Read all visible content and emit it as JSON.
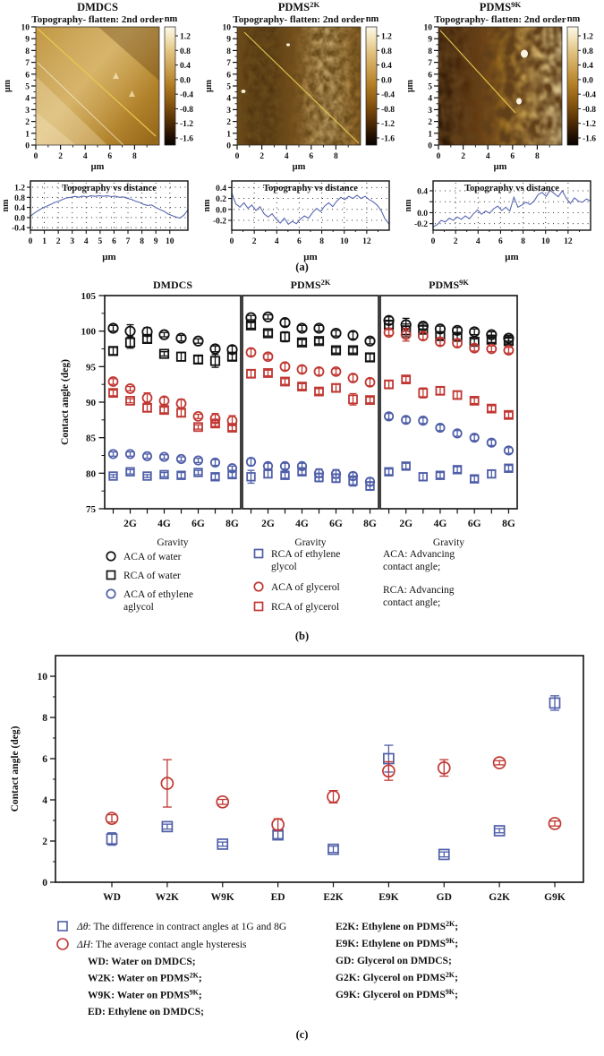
{
  "figure_labels": {
    "a": "(a)",
    "b": "(b)",
    "c": "(c)"
  },
  "colors": {
    "black": "#111111",
    "red": "#c13732",
    "blue": "#4f5fa8",
    "legend_blue_text": "#3a4f9b",
    "profile_line": "#5a68b2",
    "afm_scanline": "#e7c94f"
  },
  "afm": {
    "subtitle": "Topography- flatten: 2nd order",
    "colorbar_title": "nm",
    "colorbar_ticks": [
      "1.2",
      "0.8",
      "0.4",
      "0.0",
      "-0.4",
      "-0.8",
      "-1.2",
      "-1.6"
    ],
    "y_ticks": [
      "10",
      "9",
      "8",
      "7",
      "6",
      "5",
      "4",
      "3",
      "2",
      "1",
      "0"
    ],
    "x_ticks": [
      "0",
      "2",
      "4",
      "6",
      "8"
    ],
    "axis_unit": "μm",
    "panels": [
      {
        "title": "DMDCS"
      },
      {
        "title": "PDMS^2K^"
      },
      {
        "title": "PDMS^9K^"
      }
    ]
  },
  "chart_data": [
    {
      "id": "profile_dmdcs",
      "type": "line",
      "title": "Topography vs distance",
      "xlabel": "μm",
      "ylabel": "nm",
      "xlim": [
        0,
        11.3
      ],
      "ylim": [
        -0.5,
        1.45
      ],
      "xticks": [
        0,
        1,
        2,
        3,
        4,
        5,
        6,
        7,
        8,
        9,
        10
      ],
      "yticks": [
        1.2,
        0.8,
        0.4,
        0.0,
        -0.4
      ],
      "ytick_labels": [
        "1.2",
        "0.8",
        "0.4",
        "0.0",
        "-0.4"
      ],
      "grid": true,
      "x": [
        0,
        0.29,
        0.58,
        0.87,
        1.16,
        1.45,
        1.74,
        2.03,
        2.32,
        2.61,
        2.9,
        3.19,
        3.48,
        3.77,
        4.06,
        4.35,
        4.64,
        4.93,
        5.22,
        5.51,
        5.8,
        6.09,
        6.38,
        6.67,
        6.96,
        7.25,
        7.54,
        7.83,
        8.12,
        8.41,
        8.7,
        8.99,
        9.28,
        9.57,
        9.86,
        10.15,
        10.44,
        10.73,
        11.02,
        11.3
      ],
      "y": [
        0.05,
        0.18,
        0.28,
        0.38,
        0.45,
        0.52,
        0.6,
        0.65,
        0.72,
        0.78,
        0.8,
        0.84,
        0.8,
        0.85,
        0.82,
        0.86,
        0.84,
        0.87,
        0.84,
        0.86,
        0.83,
        0.85,
        0.8,
        0.82,
        0.76,
        0.72,
        0.65,
        0.6,
        0.52,
        0.48,
        0.5,
        0.4,
        0.32,
        0.25,
        0.15,
        0.08,
        0.02,
        -0.02,
        0.1,
        0.3
      ]
    },
    {
      "id": "profile_pdms2k",
      "type": "line",
      "title": "Topography vs distance",
      "xlabel": "μm",
      "ylabel": "nm",
      "xlim": [
        0,
        14
      ],
      "ylim": [
        -0.38,
        0.52
      ],
      "xticks": [
        0,
        2,
        4,
        6,
        8,
        10,
        12
      ],
      "yticks": [
        0.4,
        0.2,
        0.0,
        -0.2
      ],
      "ytick_labels": [
        "0.4",
        "0.2",
        "0.0",
        "-0.2"
      ],
      "grid": true,
      "x": [
        0,
        0.36,
        0.72,
        1.08,
        1.44,
        1.79,
        2.15,
        2.51,
        2.87,
        3.23,
        3.59,
        3.95,
        4.31,
        4.67,
        5.03,
        5.38,
        5.74,
        6.1,
        6.46,
        6.82,
        7.18,
        7.54,
        7.9,
        8.26,
        8.62,
        8.97,
        9.33,
        9.69,
        10.05,
        10.41,
        10.77,
        11.13,
        11.49,
        11.85,
        12.21,
        12.56,
        12.92,
        13.28,
        13.64,
        14.0
      ],
      "y": [
        0.3,
        0.1,
        0.04,
        0.12,
        0.02,
        0.08,
        -0.02,
        0.05,
        -0.08,
        -0.14,
        -0.08,
        -0.18,
        -0.25,
        -0.16,
        -0.27,
        -0.22,
        -0.26,
        -0.18,
        -0.12,
        -0.16,
        -0.06,
        0.02,
        -0.04,
        0.06,
        0.12,
        0.05,
        0.15,
        0.22,
        0.18,
        0.24,
        0.2,
        0.26,
        0.2,
        0.24,
        0.18,
        0.14,
        0.08,
        -0.02,
        -0.18,
        -0.27
      ]
    },
    {
      "id": "profile_pdms9k",
      "type": "line",
      "title": "Topography vs distance",
      "xlabel": "μm",
      "ylabel": "nm",
      "xlim": [
        0,
        14
      ],
      "ylim": [
        -0.32,
        0.58
      ],
      "xticks": [
        0,
        2,
        4,
        6,
        8,
        10,
        12
      ],
      "yticks": [
        0.4,
        0.2,
        0.0,
        -0.2
      ],
      "ytick_labels": [
        "0.4",
        "",
        "0.0",
        "-0.2"
      ],
      "grid": true,
      "x": [
        0,
        0.36,
        0.72,
        1.08,
        1.44,
        1.79,
        2.15,
        2.51,
        2.87,
        3.23,
        3.59,
        3.95,
        4.31,
        4.67,
        5.03,
        5.38,
        5.74,
        6.1,
        6.46,
        6.82,
        7.18,
        7.54,
        7.9,
        8.26,
        8.62,
        8.97,
        9.33,
        9.69,
        10.05,
        10.41,
        10.77,
        11.13,
        11.49,
        11.85,
        12.21,
        12.56,
        12.92,
        13.28,
        13.64,
        14.0
      ],
      "y": [
        -0.26,
        -0.22,
        -0.14,
        -0.17,
        -0.1,
        -0.14,
        -0.08,
        -0.12,
        -0.06,
        -0.11,
        -0.02,
        0.05,
        -0.03,
        0.03,
        -0.01,
        0.07,
        0.12,
        0.04,
        0.1,
        0.03,
        0.28,
        0.1,
        0.14,
        0.19,
        0.15,
        0.21,
        0.33,
        0.37,
        0.3,
        0.41,
        0.35,
        0.29,
        0.4,
        0.26,
        0.17,
        0.27,
        0.21,
        0.19,
        0.25,
        0.21
      ]
    },
    {
      "id": "contact_angle_vs_gravity",
      "type": "scatter",
      "ylabel": "Contact angle (deg)",
      "ylim": [
        75,
        105
      ],
      "yticks": [
        75,
        80,
        85,
        90,
        95,
        100,
        105
      ],
      "xlabel": "Gravity",
      "n_points": 8,
      "xticklabels": [
        "2G",
        "4G",
        "6G",
        "8G"
      ],
      "series_meta": [
        {
          "key": "aca_water",
          "label": "ACA of water",
          "marker": "circle",
          "color": "black"
        },
        {
          "key": "rca_water",
          "label": "RCA of water",
          "marker": "square",
          "color": "black"
        },
        {
          "key": "aca_glycerol",
          "label": "ACA of glycerol",
          "marker": "circle",
          "color": "red"
        },
        {
          "key": "rca_glycerol",
          "label": "RCA of glycerol",
          "marker": "square",
          "color": "red"
        },
        {
          "key": "aca_eg",
          "label": "ACA of ethylene aglycol",
          "marker": "circle",
          "color": "blue"
        },
        {
          "key": "rca_eg",
          "label": "RCA of ethylene glycol",
          "marker": "square",
          "color": "blue"
        }
      ],
      "subplots": [
        {
          "title": "DMDCS",
          "values": {
            "aca_water": [
              100.4,
              100.0,
              99.9,
              99.5,
              99.0,
              98.6,
              97.5,
              97.4
            ],
            "rca_water": [
              97.2,
              98.4,
              98.9,
              96.8,
              96.4,
              96.0,
              95.8,
              96.4
            ],
            "aca_glycerol": [
              92.9,
              91.9,
              90.6,
              90.2,
              89.8,
              88.0,
              87.7,
              87.4
            ],
            "rca_glycerol": [
              91.3,
              90.2,
              89.2,
              88.9,
              88.5,
              86.5,
              87.0,
              86.4
            ],
            "aca_eg": [
              82.7,
              82.7,
              82.4,
              82.3,
              82.0,
              81.8,
              81.5,
              80.7
            ],
            "rca_eg": [
              79.6,
              80.2,
              79.6,
              79.8,
              79.7,
              80.1,
              79.5,
              79.8
            ]
          },
          "errors": {
            "aca_water": [
              0.4,
              0.9,
              0.6,
              0.3,
              0.4,
              0.3,
              0.4,
              0.5
            ],
            "rca_water": [
              0.5,
              0.8,
              0.5,
              0.3,
              0.6,
              0.5,
              0.9,
              0.5
            ],
            "aca_glycerol": [
              0.4,
              0.3,
              0.7,
              0.5,
              0.6,
              0.3,
              0.7,
              0.7
            ],
            "rca_glycerol": [
              0.4,
              0.3,
              0.5,
              0.4,
              0.5,
              0.3,
              0.4,
              0.4
            ],
            "aca_eg": [
              0.3,
              0.3,
              0.3,
              0.3,
              0.3,
              0.3,
              0.4,
              0.3
            ],
            "rca_eg": [
              0.2,
              0.3,
              0.2,
              0.3,
              0.4,
              0.3,
              0.4,
              0.4
            ]
          }
        },
        {
          "title": "PDMS^2K^",
          "values": {
            "aca_water": [
              101.9,
              102.0,
              101.2,
              100.4,
              100.4,
              99.7,
              99.4,
              98.6
            ],
            "rca_water": [
              100.8,
              99.7,
              99.2,
              98.4,
              98.6,
              97.3,
              97.3,
              96.3
            ],
            "aca_glycerol": [
              97.0,
              96.4,
              95.0,
              94.6,
              94.3,
              94.3,
              93.4,
              92.8
            ],
            "rca_glycerol": [
              94.0,
              94.1,
              92.9,
              92.2,
              91.5,
              92.0,
              90.4,
              90.3
            ],
            "aca_eg": [
              81.6,
              81.0,
              81.0,
              81.0,
              80.0,
              79.9,
              79.6,
              78.8
            ],
            "rca_eg": [
              79.5,
              79.9,
              79.7,
              80.2,
              79.4,
              79.3,
              78.9,
              78.2
            ]
          },
          "errors": {
            "aca_water": [
              0.3,
              0.3,
              0.5,
              0.4,
              0.4,
              0.4,
              0.5,
              0.4
            ],
            "rca_water": [
              0.4,
              0.4,
              0.7,
              0.4,
              0.4,
              0.4,
              0.4,
              0.5
            ],
            "aca_glycerol": [
              0.5,
              0.4,
              0.5,
              0.5,
              0.5,
              0.4,
              0.5,
              0.5
            ],
            "rca_glycerol": [
              0.5,
              0.4,
              0.4,
              0.4,
              0.4,
              0.5,
              0.8,
              0.4
            ],
            "aca_eg": [
              0.5,
              0.4,
              0.4,
              0.4,
              0.6,
              0.6,
              0.5,
              0.5
            ],
            "rca_eg": [
              0.9,
              0.5,
              0.4,
              0.4,
              0.6,
              0.6,
              0.7,
              0.6
            ]
          }
        },
        {
          "title": "PDMS^9K^",
          "values": {
            "aca_water": [
              101.5,
              100.9,
              100.7,
              100.3,
              100.1,
              99.9,
              99.5,
              99.0
            ],
            "rca_water": [
              100.9,
              100.1,
              100.2,
              99.3,
              99.2,
              98.5,
              98.8,
              98.6
            ],
            "aca_glycerol": [
              99.8,
              99.5,
              99.3,
              98.5,
              98.3,
              97.6,
              97.5,
              97.3
            ],
            "rca_glycerol": [
              92.5,
              93.2,
              91.3,
              91.6,
              91.0,
              90.2,
              89.1,
              88.2
            ],
            "aca_eg": [
              88.0,
              87.5,
              87.4,
              86.4,
              85.6,
              85.0,
              84.3,
              83.2
            ],
            "rca_eg": [
              80.2,
              81.0,
              79.5,
              79.7,
              80.5,
              79.2,
              79.9,
              80.7
            ]
          },
          "errors": {
            "aca_water": [
              0.5,
              0.9,
              0.4,
              0.4,
              0.4,
              0.4,
              0.4,
              0.4
            ],
            "rca_water": [
              0.5,
              0.9,
              0.5,
              0.5,
              0.4,
              0.4,
              0.4,
              0.4
            ],
            "aca_glycerol": [
              0.4,
              0.9,
              0.5,
              0.5,
              0.5,
              0.4,
              0.4,
              0.4
            ],
            "rca_glycerol": [
              0.5,
              0.4,
              0.7,
              0.5,
              0.5,
              0.4,
              0.4,
              0.4
            ],
            "aca_eg": [
              0.4,
              0.4,
              0.4,
              0.4,
              0.4,
              0.4,
              0.4,
              0.4
            ],
            "rca_eg": [
              0.4,
              0.4,
              0.5,
              0.4,
              0.4,
              0.4,
              0.5,
              0.4
            ]
          }
        }
      ],
      "legend": {
        "col1": [
          {
            "marker": "circle",
            "color": "black",
            "label": "ACA of water"
          },
          {
            "marker": "square",
            "color": "black",
            "label": "RCA of water"
          },
          {
            "marker": "circle",
            "color": "blue",
            "label": "ACA of ethylene\naglycol"
          }
        ],
        "col2": [
          {
            "marker": "square",
            "color": "blue",
            "label": "RCA of ethylene\nglycol"
          },
          {
            "marker": "circle",
            "color": "red",
            "label": "ACA of glycerol"
          },
          {
            "marker": "square",
            "color": "red",
            "label": "RCA of glycerol"
          }
        ],
        "notes": [
          "ACA: Advancing\ncontact angle;",
          "RCA: Advancing\ncontact angle;"
        ]
      }
    },
    {
      "id": "hysteresis_summary",
      "type": "scatter",
      "ylabel": "Contact angle (deg)",
      "ylim": [
        0,
        11
      ],
      "yticks": [
        0,
        2,
        4,
        6,
        8,
        10
      ],
      "categories": [
        "WD",
        "W2K",
        "W9K",
        "ED",
        "E2K",
        "E9K",
        "GD",
        "G2K",
        "G9K"
      ],
      "series": [
        {
          "key": "delta_theta",
          "marker": "square",
          "color": "blue",
          "sym": "Δθ",
          "label": ": The difference in contract angles at 1G and 8G",
          "values": [
            2.1,
            2.7,
            1.85,
            2.3,
            1.6,
            6.0,
            1.35,
            2.5,
            8.7
          ],
          "err": [
            0.3,
            0.12,
            0.1,
            0.18,
            0.15,
            0.65,
            0.12,
            0.1,
            0.35
          ]
        },
        {
          "key": "delta_H",
          "marker": "circle",
          "color": "red",
          "sym": "ΔH",
          "label": ": The average contact angle hysteresis",
          "values": [
            3.1,
            4.8,
            3.9,
            2.8,
            4.15,
            5.4,
            5.55,
            5.8,
            2.85
          ],
          "err": [
            0.18,
            1.15,
            0.12,
            0.28,
            0.3,
            0.45,
            0.4,
            0.1,
            0.12
          ]
        }
      ],
      "definitions_col1": [
        "WD: Water on DMDCS;",
        "W2K: Water on PDMS^2K^;",
        "W9K: Water on PDMS^9K^;",
        "ED: Ethylene on DMDCS;"
      ],
      "definitions_col2": [
        "E2K: Ethylene on PDMS^2K^;",
        "E9K: Ethylene on PDMS^9K^;",
        "GD: Glycerol on DMDCS;",
        "G2K: Glycerol on PDMS^2K^;",
        "G9K: Glycerol on PDMS^9K^;"
      ]
    }
  ]
}
